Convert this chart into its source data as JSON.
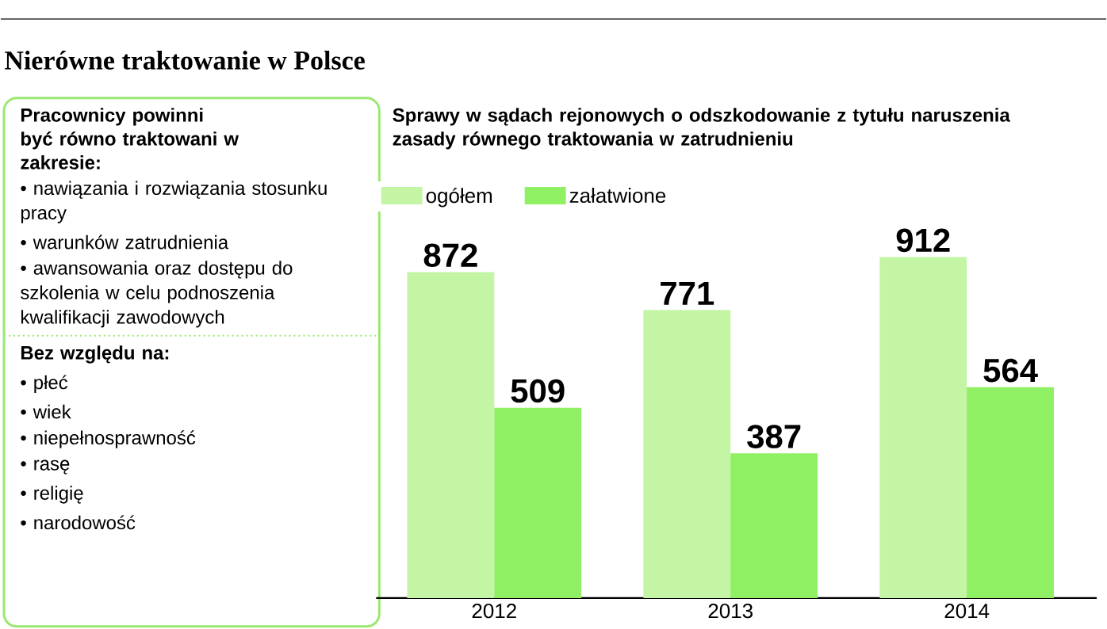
{
  "chart_data": [
    {
      "type": "other",
      "title": "Nierówne traktowanie w Polsce",
      "subtitle": "Pracownicy powinni być równo traktowani w zakresie:",
      "annotations": [
        "• nawiązania i rozwiązania stosunku pracy",
        "• warunków zatrudnienia",
        "• awansowania oraz dostępu do szkolenia w celu podnoszenia kwalifikacji zawodowych"
      ]
    },
    {
      "type": "other",
      "title": "Bez względu na:",
      "annotations": [
        "• płeć",
        "• wiek",
        "• niepełnosprawność",
        "• rasę",
        "• religię",
        "• narodowość"
      ]
    },
    {
      "type": "bar",
      "title": "Sprawy w sądach rejonowych o odszkodowanie z tytułu naruszenia zasady równego traktowania w zatrudnieniu",
      "categories": [
        "2012",
        "2013",
        "2014"
      ],
      "series": [
        {
          "name": "ogółem",
          "color": "#c4f5a4",
          "values": [
            872,
            771,
            912
          ]
        },
        {
          "name": "załatwione",
          "color": "#8ef062",
          "values": [
            509,
            387,
            564
          ]
        }
      ],
      "data_labels": true,
      "legend": "top left"
    }
  ]
}
